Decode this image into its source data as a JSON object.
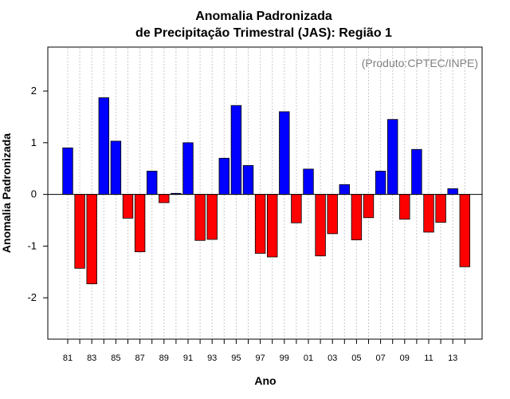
{
  "chart_data": {
    "type": "bar",
    "title": "Anomalia Padronizada",
    "subtitle": "de Precipitação Trimestral (JAS): Região 1",
    "xlabel": "Ano",
    "ylabel": "Anomalia Padronizada",
    "annotation": "(Produto:CPTEC/INPE)",
    "ylim": [
      -2.8,
      2.85
    ],
    "yticks": [
      -2,
      -1,
      0,
      1,
      2
    ],
    "ytick_labels": [
      "-2",
      "-1",
      "0",
      "1",
      "2"
    ],
    "categories": [
      "1981",
      "1982",
      "1983",
      "1984",
      "1985",
      "1986",
      "1987",
      "1988",
      "1989",
      "1990",
      "1991",
      "1992",
      "1993",
      "1994",
      "1995",
      "1996",
      "1997",
      "1998",
      "1999",
      "2000",
      "2001",
      "2002",
      "2003",
      "2004",
      "2005",
      "2006",
      "2007",
      "2008",
      "2009",
      "2010",
      "2011",
      "2012",
      "2013",
      "2014"
    ],
    "xtick_labels": [
      "81",
      "83",
      "85",
      "87",
      "89",
      "91",
      "93",
      "95",
      "97",
      "99",
      "01",
      "03",
      "05",
      "07",
      "09",
      "11",
      "13"
    ],
    "values": [
      0.9,
      -1.43,
      -1.73,
      1.87,
      1.03,
      -0.46,
      -1.11,
      0.45,
      -0.16,
      0.02,
      1.0,
      -0.89,
      -0.87,
      0.7,
      1.72,
      0.56,
      -1.14,
      -1.21,
      1.6,
      -0.55,
      0.49,
      -1.19,
      -0.76,
      0.19,
      -0.88,
      -0.45,
      0.45,
      1.45,
      -0.48,
      0.87,
      -0.73,
      -0.54,
      0.11,
      -1.4
    ],
    "colors": {
      "positive": "#0000ff",
      "negative": "#ff0000",
      "grid": "#c8c8c8",
      "annotation": "#808080"
    },
    "grid": true
  }
}
